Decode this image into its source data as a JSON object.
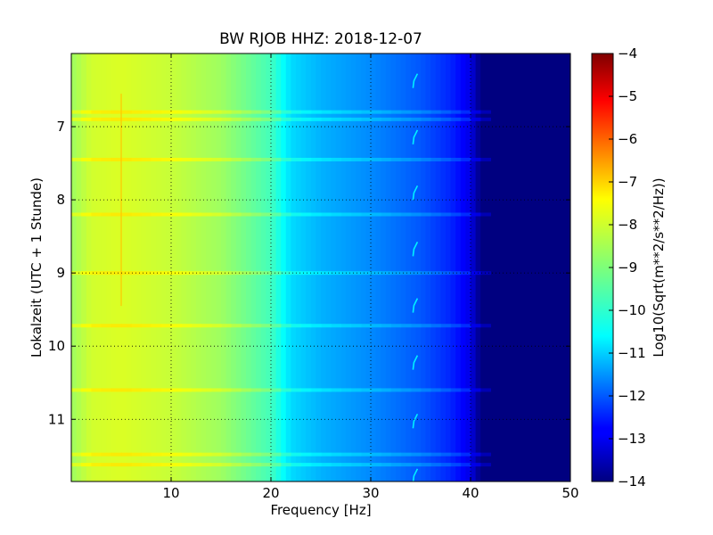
{
  "chart_data": {
    "type": "heatmap",
    "title": "BW RJOB HHZ: 2018-12-07",
    "xlabel": "Frequency [Hz]",
    "ylabel": "Lokalzeit (UTC + 1 Stunde)",
    "xlim": [
      0,
      50
    ],
    "ylim": [
      11.85,
      6.0
    ],
    "y_inverted": true,
    "x_ticks": [
      10,
      20,
      30,
      40,
      50
    ],
    "y_ticks": [
      7,
      8,
      9,
      10,
      11
    ],
    "grid": true,
    "colormap": "jet",
    "colorbar": {
      "label": "Log10(Sqrt(m**2/s**2/Hz))",
      "range": [
        -14,
        -4
      ],
      "ticks": [
        -4,
        -5,
        -6,
        -7,
        -8,
        -9,
        -10,
        -11,
        -12,
        -13,
        -14
      ]
    },
    "frequency_profile": {
      "freq_hz": [
        0,
        2,
        5,
        10,
        15,
        20,
        22,
        25,
        30,
        35,
        38,
        40,
        41,
        50
      ],
      "log_amplitude": [
        -8.7,
        -8.2,
        -8.1,
        -8.3,
        -8.7,
        -9.6,
        -10.6,
        -11.0,
        -11.4,
        -11.9,
        -12.4,
        -13.0,
        -14.0,
        -14.0
      ]
    },
    "horizontal_bands_local_time": [
      6.8,
      6.9,
      7.45,
      8.2,
      9.0,
      9.72,
      10.6,
      11.48,
      11.62
    ],
    "chirp_features": {
      "freq_hz": 34.5,
      "times_local": [
        6.35,
        7.12,
        7.88,
        8.65,
        9.42,
        10.2,
        11.0,
        11.75
      ]
    },
    "spike_feature": {
      "freq_hz": 5.0,
      "time_range": [
        6.55,
        9.45
      ]
    }
  }
}
